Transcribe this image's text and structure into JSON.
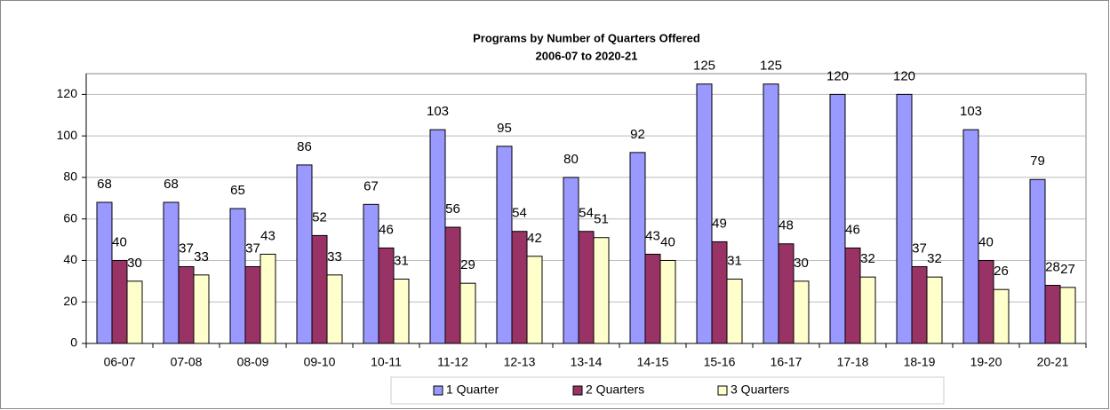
{
  "chart_data": {
    "type": "bar",
    "title": "Programs by Number of Quarters Offered",
    "subtitle": "2006-07 to 2020-21",
    "categories": [
      "06-07",
      "07-08",
      "08-09",
      "09-10",
      "10-11",
      "11-12",
      "12-13",
      "13-14",
      "14-15",
      "15-16",
      "16-17",
      "17-18",
      "18-19",
      "19-20",
      "20-21"
    ],
    "series": [
      {
        "name": "1 Quarter",
        "color": "#9999ff",
        "values": [
          68,
          68,
          65,
          86,
          67,
          103,
          95,
          80,
          92,
          125,
          125,
          120,
          120,
          103,
          79
        ]
      },
      {
        "name": "2 Quarters",
        "color": "#993366",
        "values": [
          40,
          37,
          37,
          52,
          46,
          56,
          54,
          54,
          43,
          49,
          48,
          46,
          37,
          40,
          28
        ]
      },
      {
        "name": "3 Quarters",
        "color": "#ffffcc",
        "values": [
          30,
          33,
          43,
          33,
          31,
          29,
          42,
          51,
          40,
          31,
          30,
          32,
          32,
          26,
          27
        ]
      }
    ],
    "ylim": [
      0,
      130
    ],
    "yticks": [
      0,
      20,
      40,
      60,
      80,
      100,
      120
    ],
    "grid": true,
    "legend": "bottom"
  }
}
